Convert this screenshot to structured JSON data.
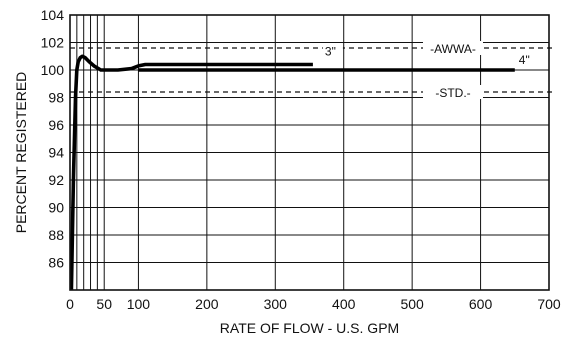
{
  "chart_data": {
    "type": "line",
    "xlabel": "RATE OF FLOW - U.S. GPM",
    "ylabel": "PERCENT REGISTERED",
    "xlim": [
      0,
      700
    ],
    "ylim": [
      84,
      104
    ],
    "x_ticks": [
      0,
      50,
      100,
      200,
      300,
      400,
      500,
      600,
      700
    ],
    "y_ticks": [
      86,
      88,
      90,
      92,
      94,
      96,
      98,
      100,
      102,
      104
    ],
    "x_minor_grid": [
      10,
      20,
      30,
      40
    ],
    "grid": true,
    "series": [
      {
        "name": "3\"",
        "x": [
          2,
          5,
          8,
          10,
          12,
          15,
          18,
          22,
          28,
          35,
          45,
          55,
          70,
          90,
          100,
          110,
          150,
          250,
          355
        ],
        "y": [
          84,
          92,
          98,
          100,
          100.6,
          100.9,
          101,
          100.9,
          100.6,
          100.3,
          100,
          100,
          100,
          100.1,
          100.3,
          100.4,
          100.4,
          100.4,
          100.4
        ]
      },
      {
        "name": "4\"",
        "x": [
          100,
          200,
          300,
          400,
          500,
          650
        ],
        "y": [
          100,
          100,
          100,
          100,
          100,
          100
        ]
      }
    ],
    "reference_lines": [
      {
        "value": 101.6,
        "label": "AWWA"
      },
      {
        "value": 98.4,
        "label": "STD."
      }
    ]
  }
}
